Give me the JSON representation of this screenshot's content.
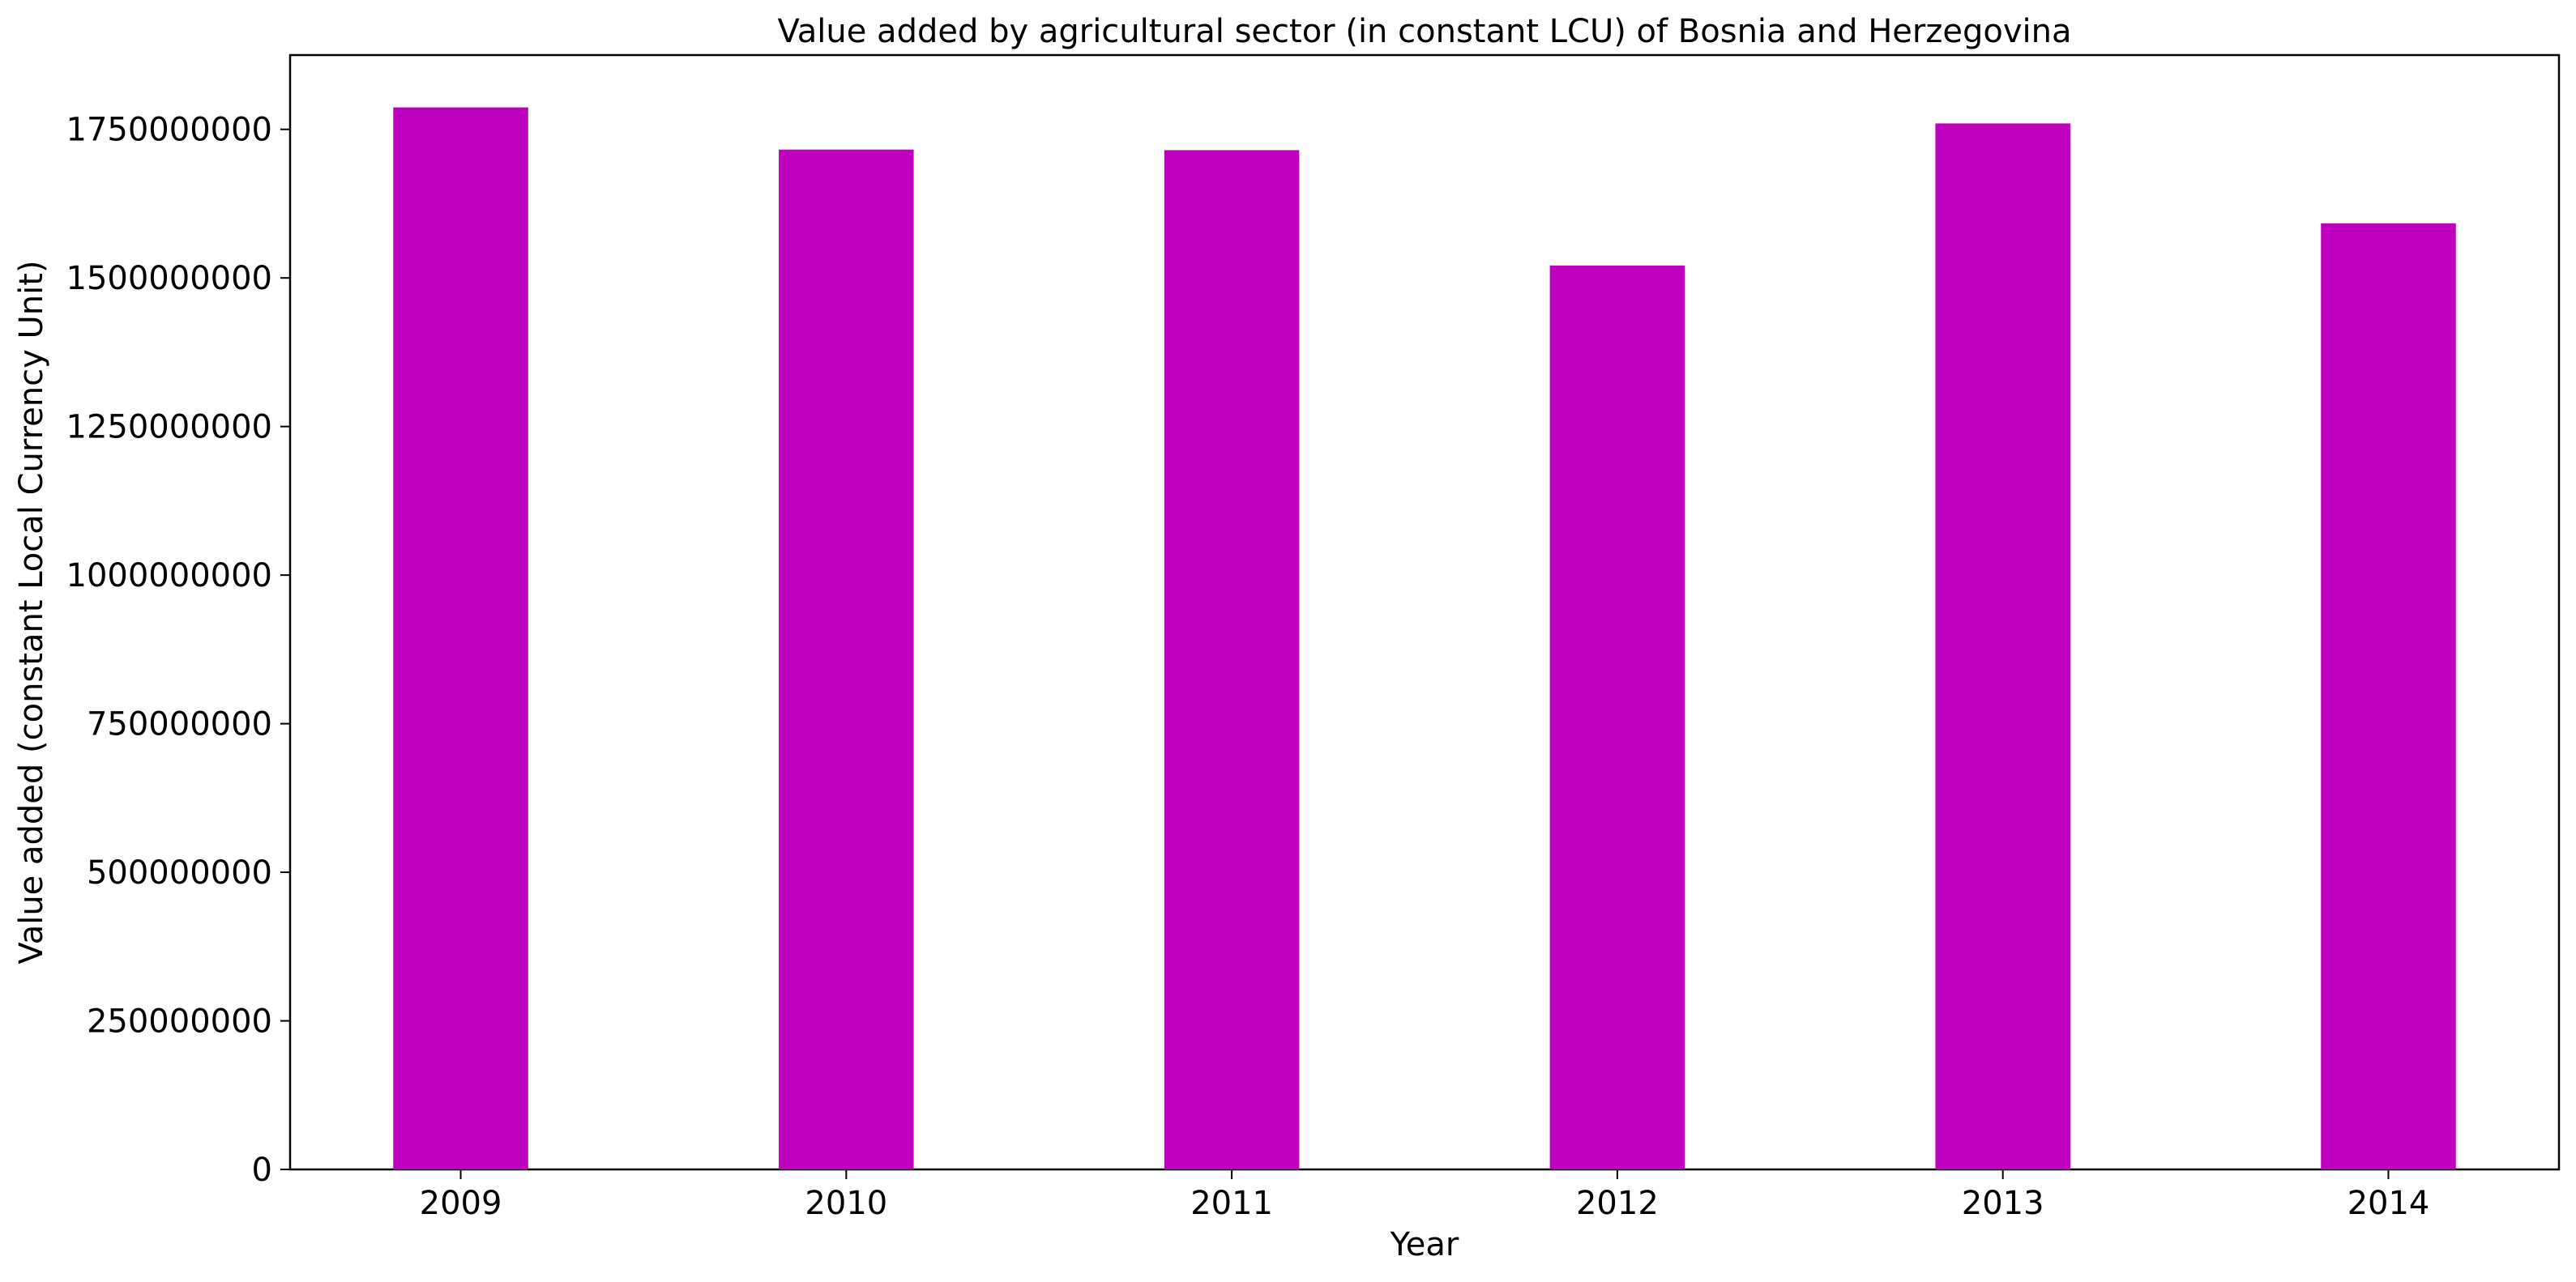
{
  "chart_data": {
    "type": "bar",
    "title": "Value added by agricultural sector (in constant LCU) of Bosnia and Herzegovina",
    "xlabel": "Year",
    "ylabel": "Value added (constant Local Currency Unit)",
    "categories": [
      "2009",
      "2010",
      "2011",
      "2012",
      "2013",
      "2014"
    ],
    "values": [
      1787000000,
      1716000000,
      1715000000,
      1521000000,
      1760000000,
      1592000000
    ],
    "ylim": [
      0,
      1875000000
    ],
    "yticks": [
      0,
      250000000,
      500000000,
      750000000,
      1000000000,
      1250000000,
      1500000000,
      1750000000
    ],
    "ytick_labels": [
      "0",
      "250000000",
      "500000000",
      "750000000",
      "1000000000",
      "1250000000",
      "1500000000",
      "1750000000"
    ],
    "bar_color": "#bf00bf",
    "grid": false,
    "legend": "none"
  }
}
